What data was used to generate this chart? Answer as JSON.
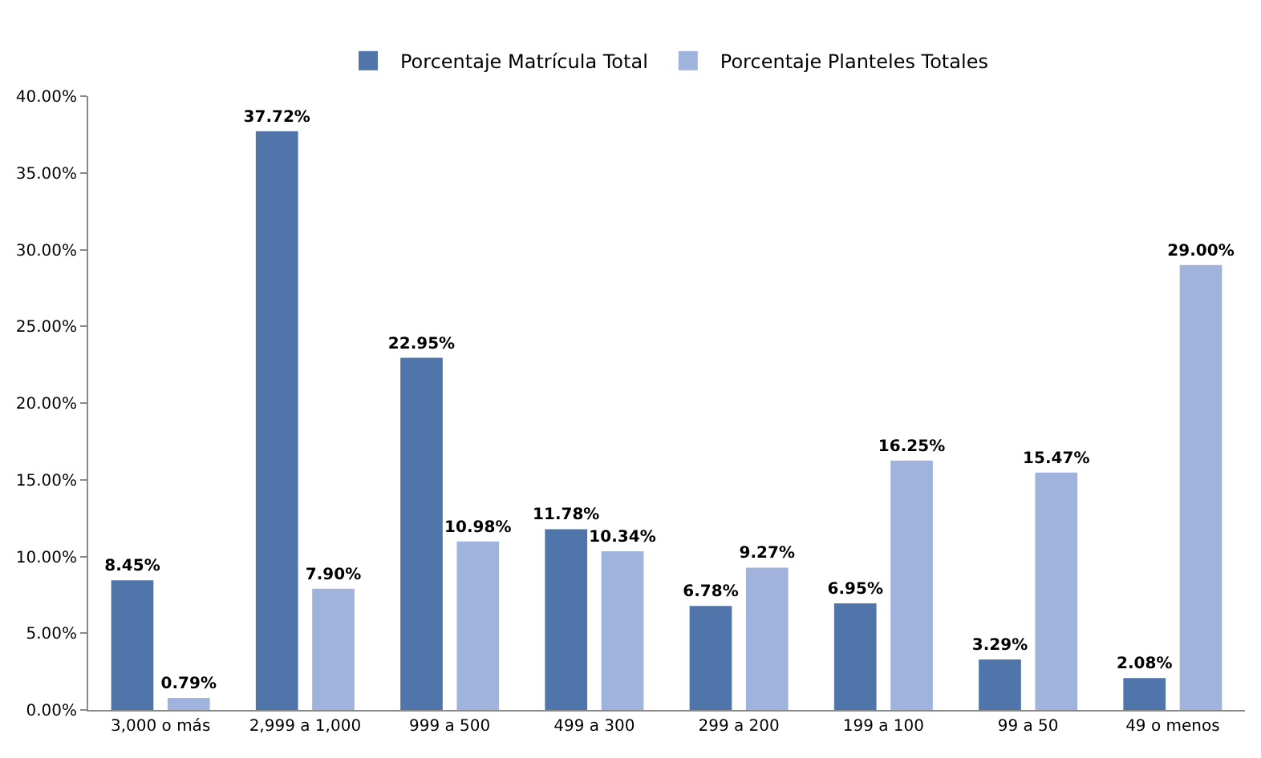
{
  "chart_data": {
    "type": "bar",
    "categories": [
      "3,000 o más",
      "2,999 a 1,000",
      "999 a 500",
      "499 a 300",
      "299 a 200",
      "199 a 100",
      "99 a 50",
      "49 o menos"
    ],
    "series": [
      {
        "name": "Porcentaje Matrícula Total",
        "color": "#4f75ab",
        "values": [
          8.45,
          37.72,
          22.95,
          11.78,
          6.78,
          6.95,
          3.29,
          2.08
        ],
        "value_labels": [
          "8.45%",
          "37.72%",
          "22.95%",
          "11.78%",
          "6.78%",
          "6.95%",
          "3.29%",
          "2.08%"
        ]
      },
      {
        "name": "Porcentaje Planteles Totales",
        "color": "#9fb3dc",
        "values": [
          0.79,
          7.9,
          10.98,
          10.34,
          9.27,
          16.25,
          15.47,
          29.0
        ],
        "value_labels": [
          "0.79%",
          "7.90%",
          "10.98%",
          "10.34%",
          "9.27%",
          "16.25%",
          "15.47%",
          "29.00%"
        ]
      }
    ],
    "ylim": [
      0,
      40
    ],
    "yticks": [
      {
        "value": 0,
        "label": "0.00%"
      },
      {
        "value": 5,
        "label": "5.00%"
      },
      {
        "value": 10,
        "label": "10.00%"
      },
      {
        "value": 15,
        "label": "15.00%"
      },
      {
        "value": 20,
        "label": "20.00%"
      },
      {
        "value": 25,
        "label": "25.00%"
      },
      {
        "value": 30,
        "label": "30.00%"
      },
      {
        "value": 35,
        "label": "35.00%"
      },
      {
        "value": 40,
        "label": "40.00%"
      }
    ],
    "legend": "top"
  }
}
